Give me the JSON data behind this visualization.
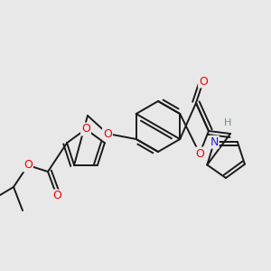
{
  "background_color": "#e8e8e8",
  "bond_color": "#1a1a1a",
  "bond_width": 1.4,
  "atom_colors": {
    "O": "#ee0000",
    "N": "#2020dd",
    "H": "#709090",
    "C": "#1a1a1a"
  },
  "font_size": 8.5,
  "fig_width": 3.0,
  "fig_height": 3.0,
  "dpi": 100
}
